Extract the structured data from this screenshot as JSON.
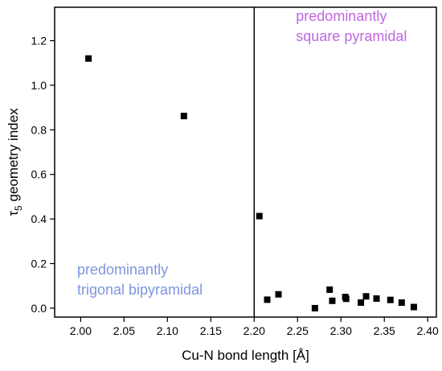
{
  "chart_data": {
    "type": "scatter",
    "xlabel": "Cu-N bond length [Å]",
    "ylabel": {
      "symbol": "τ",
      "subscript": "5",
      "rest": " geometry index"
    },
    "xlim": [
      1.97,
      2.41
    ],
    "ylim": [
      -0.04,
      1.35
    ],
    "x_ticks": [
      2.0,
      2.05,
      2.1,
      2.15,
      2.2,
      2.25,
      2.3,
      2.35,
      2.4
    ],
    "x_tick_labels": [
      "2.00",
      "2.05",
      "2.10",
      "2.15",
      "2.20",
      "2.25",
      "2.30",
      "2.35",
      "2.40"
    ],
    "y_ticks": [
      0.0,
      0.2,
      0.4,
      0.6,
      0.8,
      1.0,
      1.2
    ],
    "y_tick_labels": [
      "0.0",
      "0.2",
      "0.4",
      "0.6",
      "0.8",
      "1.0",
      "1.2"
    ],
    "vertical_line_x": 2.2,
    "grid": false,
    "marker": "square",
    "marker_color": "#000000",
    "points": [
      {
        "x": 2.009,
        "y": 1.12
      },
      {
        "x": 2.119,
        "y": 0.862
      },
      {
        "x": 2.206,
        "y": 0.413
      },
      {
        "x": 2.215,
        "y": 0.038
      },
      {
        "x": 2.228,
        "y": 0.062
      },
      {
        "x": 2.27,
        "y": 0.0
      },
      {
        "x": 2.287,
        "y": 0.083
      },
      {
        "x": 2.29,
        "y": 0.033
      },
      {
        "x": 2.305,
        "y": 0.05
      },
      {
        "x": 2.306,
        "y": 0.042
      },
      {
        "x": 2.323,
        "y": 0.025
      },
      {
        "x": 2.329,
        "y": 0.053
      },
      {
        "x": 2.341,
        "y": 0.043
      },
      {
        "x": 2.357,
        "y": 0.037
      },
      {
        "x": 2.37,
        "y": 0.025
      },
      {
        "x": 2.384,
        "y": 0.005
      }
    ],
    "annotations": [
      {
        "lines": [
          "predominantly",
          "square pyramidal"
        ],
        "color": "#c266e0",
        "region": "top-right"
      },
      {
        "lines": [
          "predominantly",
          "trigonal bipyramidal"
        ],
        "color": "#7e95e0",
        "region": "bottom-left"
      }
    ]
  }
}
